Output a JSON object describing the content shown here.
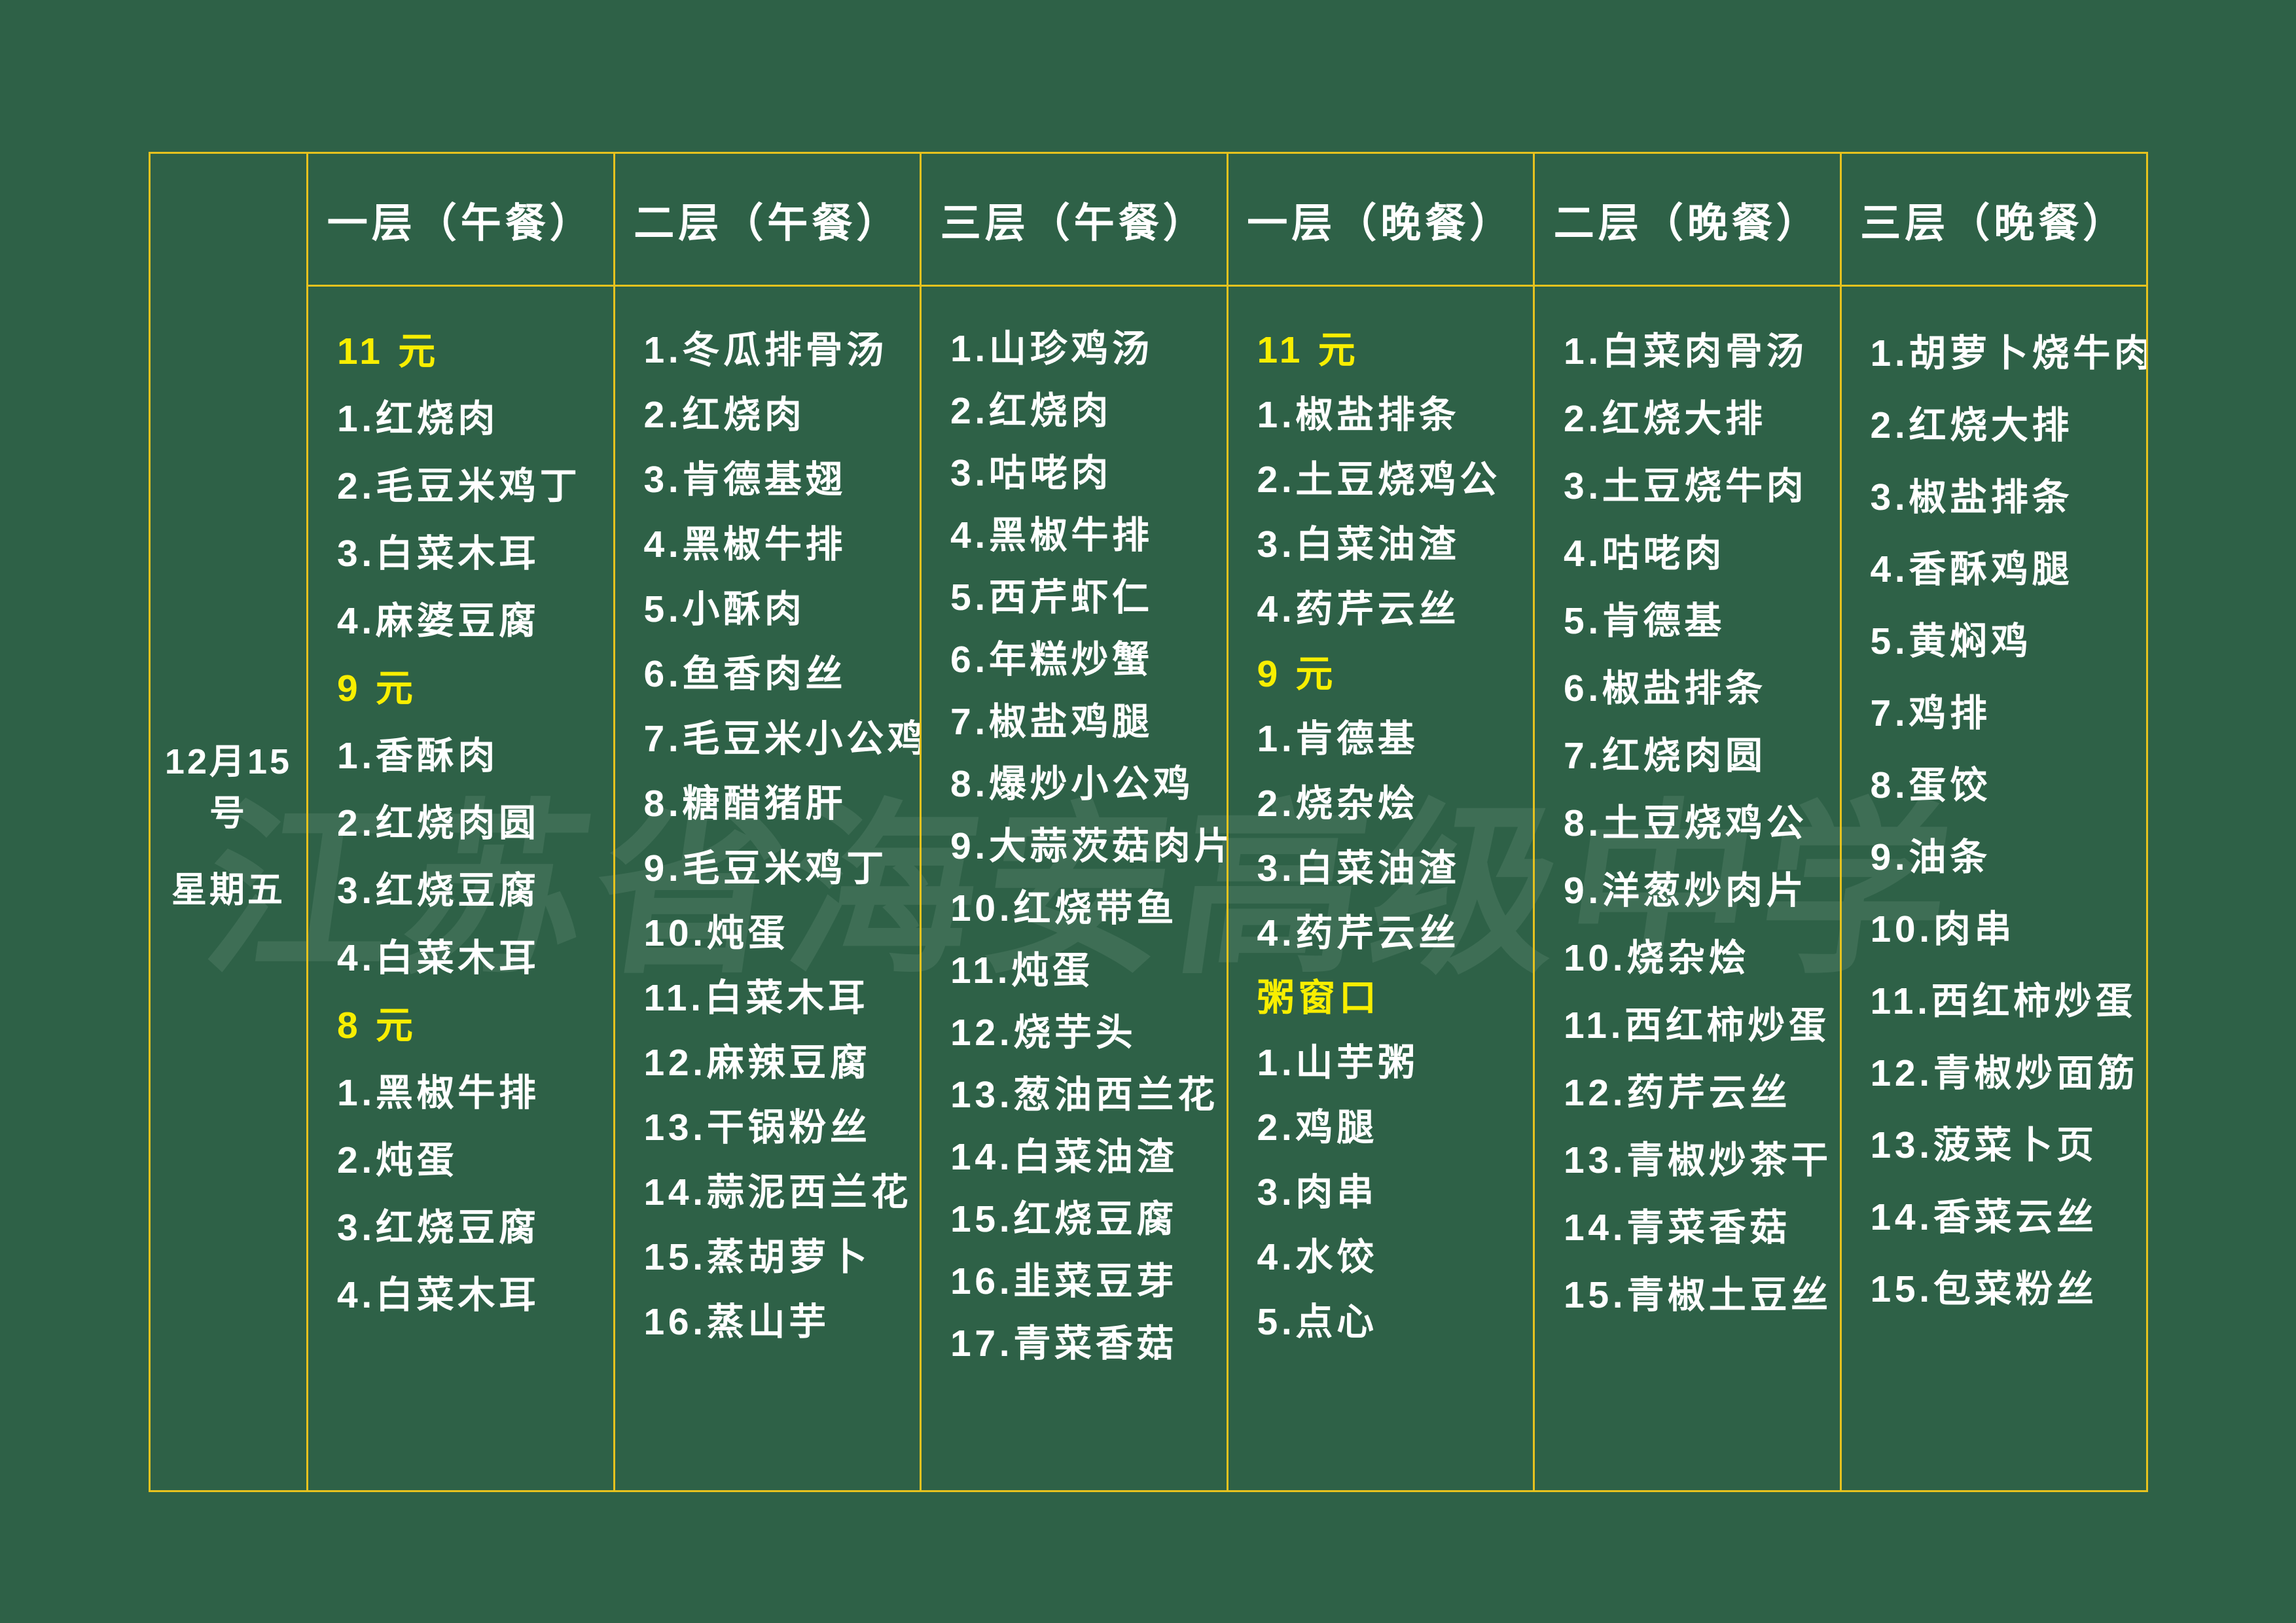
{
  "watermark": "江苏省海安高级中学",
  "date": {
    "line1": "12月15号",
    "line2": "星期五"
  },
  "colors": {
    "board_green": "#2e6147",
    "grid_yellow": "#e6c21e",
    "price_yellow": "#f8ee00",
    "text_white": "#ffffff"
  },
  "columns": [
    {
      "header": "一层（午餐）",
      "lines": [
        {
          "text": "11 元",
          "highlight": true
        },
        {
          "text": "1.红烧肉",
          "highlight": false
        },
        {
          "text": "2.毛豆米鸡丁",
          "highlight": false
        },
        {
          "text": "3.白菜木耳",
          "highlight": false
        },
        {
          "text": "4.麻婆豆腐",
          "highlight": false
        },
        {
          "text": "9 元",
          "highlight": true
        },
        {
          "text": "1.香酥肉",
          "highlight": false
        },
        {
          "text": "2.红烧肉圆",
          "highlight": false
        },
        {
          "text": "3.红烧豆腐",
          "highlight": false
        },
        {
          "text": "4.白菜木耳",
          "highlight": false
        },
        {
          "text": "8 元",
          "highlight": true
        },
        {
          "text": "1.黑椒牛排",
          "highlight": false
        },
        {
          "text": "2.炖蛋",
          "highlight": false
        },
        {
          "text": "3.红烧豆腐",
          "highlight": false
        },
        {
          "text": "4.白菜木耳",
          "highlight": false
        }
      ]
    },
    {
      "header": "二层（午餐）",
      "lines": [
        {
          "text": "1.冬瓜排骨汤",
          "highlight": false
        },
        {
          "text": "2.红烧肉",
          "highlight": false
        },
        {
          "text": "3.肯德基翅",
          "highlight": false
        },
        {
          "text": "4.黑椒牛排",
          "highlight": false
        },
        {
          "text": "5.小酥肉",
          "highlight": false
        },
        {
          "text": "6.鱼香肉丝",
          "highlight": false
        },
        {
          "text": "7.毛豆米小公鸡",
          "highlight": false
        },
        {
          "text": "8.糖醋猪肝",
          "highlight": false
        },
        {
          "text": "9.毛豆米鸡丁",
          "highlight": false
        },
        {
          "text": "10.炖蛋",
          "highlight": false
        },
        {
          "text": "11.白菜木耳",
          "highlight": false
        },
        {
          "text": "12.麻辣豆腐",
          "highlight": false
        },
        {
          "text": "13.干锅粉丝",
          "highlight": false
        },
        {
          "text": "14.蒜泥西兰花",
          "highlight": false
        },
        {
          "text": "15.蒸胡萝卜",
          "highlight": false
        },
        {
          "text": "16.蒸山芋",
          "highlight": false
        }
      ]
    },
    {
      "header": "三层（午餐）",
      "lines": [
        {
          "text": "1.山珍鸡汤",
          "highlight": false
        },
        {
          "text": "2.红烧肉",
          "highlight": false
        },
        {
          "text": "3.咕咾肉",
          "highlight": false
        },
        {
          "text": "4.黑椒牛排",
          "highlight": false
        },
        {
          "text": "5.西芹虾仁",
          "highlight": false
        },
        {
          "text": "6.年糕炒蟹",
          "highlight": false
        },
        {
          "text": "7.椒盐鸡腿",
          "highlight": false
        },
        {
          "text": "8.爆炒小公鸡",
          "highlight": false
        },
        {
          "text": "9.大蒜茨菇肉片",
          "highlight": false
        },
        {
          "text": "10.红烧带鱼",
          "highlight": false
        },
        {
          "text": "11.炖蛋",
          "highlight": false
        },
        {
          "text": "12.烧芋头",
          "highlight": false
        },
        {
          "text": "13.葱油西兰花",
          "highlight": false
        },
        {
          "text": "14.白菜油渣",
          "highlight": false
        },
        {
          "text": "15.红烧豆腐",
          "highlight": false
        },
        {
          "text": "16.韭菜豆芽",
          "highlight": false
        },
        {
          "text": "17.青菜香菇",
          "highlight": false
        }
      ]
    },
    {
      "header": "一层（晚餐）",
      "lines": [
        {
          "text": "11 元",
          "highlight": true
        },
        {
          "text": "1.椒盐排条",
          "highlight": false
        },
        {
          "text": "2.土豆烧鸡公",
          "highlight": false
        },
        {
          "text": "3.白菜油渣",
          "highlight": false
        },
        {
          "text": "4.药芹云丝",
          "highlight": false
        },
        {
          "text": "9 元",
          "highlight": true
        },
        {
          "text": "1.肯德基",
          "highlight": false
        },
        {
          "text": "2.烧杂烩",
          "highlight": false
        },
        {
          "text": "3.白菜油渣",
          "highlight": false
        },
        {
          "text": "4.药芹云丝",
          "highlight": false
        },
        {
          "text": "粥窗口",
          "highlight": true
        },
        {
          "text": "1.山芋粥",
          "highlight": false
        },
        {
          "text": "2.鸡腿",
          "highlight": false
        },
        {
          "text": "3.肉串",
          "highlight": false
        },
        {
          "text": "4.水饺",
          "highlight": false
        },
        {
          "text": "5.点心",
          "highlight": false
        }
      ]
    },
    {
      "header": "二层（晚餐）",
      "lines": [
        {
          "text": "1.白菜肉骨汤",
          "highlight": false
        },
        {
          "text": "2.红烧大排",
          "highlight": false
        },
        {
          "text": "3.土豆烧牛肉",
          "highlight": false
        },
        {
          "text": "4.咕咾肉",
          "highlight": false
        },
        {
          "text": "5.肯德基",
          "highlight": false
        },
        {
          "text": "6.椒盐排条",
          "highlight": false
        },
        {
          "text": "7.红烧肉圆",
          "highlight": false
        },
        {
          "text": "8.土豆烧鸡公",
          "highlight": false
        },
        {
          "text": "9.洋葱炒肉片",
          "highlight": false
        },
        {
          "text": "10.烧杂烩",
          "highlight": false
        },
        {
          "text": "11.西红柿炒蛋",
          "highlight": false
        },
        {
          "text": "12.药芹云丝",
          "highlight": false
        },
        {
          "text": "13.青椒炒茶干",
          "highlight": false
        },
        {
          "text": "14.青菜香菇",
          "highlight": false
        },
        {
          "text": "15.青椒土豆丝",
          "highlight": false
        }
      ]
    },
    {
      "header": "三层（晚餐）",
      "lines": [
        {
          "text": "1.胡萝卜烧牛肉",
          "highlight": false
        },
        {
          "text": "2.红烧大排",
          "highlight": false
        },
        {
          "text": "3.椒盐排条",
          "highlight": false
        },
        {
          "text": "4.香酥鸡腿",
          "highlight": false
        },
        {
          "text": "5.黄焖鸡",
          "highlight": false
        },
        {
          "text": "7.鸡排",
          "highlight": false
        },
        {
          "text": "8.蛋饺",
          "highlight": false
        },
        {
          "text": "9.油条",
          "highlight": false
        },
        {
          "text": "10.肉串",
          "highlight": false
        },
        {
          "text": "11.西红柿炒蛋",
          "highlight": false
        },
        {
          "text": "12.青椒炒面筋",
          "highlight": false
        },
        {
          "text": "13.菠菜卜页",
          "highlight": false
        },
        {
          "text": "14.香菜云丝",
          "highlight": false
        },
        {
          "text": "15.包菜粉丝",
          "highlight": false
        }
      ]
    }
  ]
}
